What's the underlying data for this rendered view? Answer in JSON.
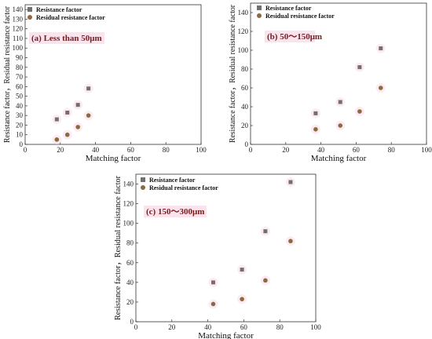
{
  "chart_data": [
    {
      "id": "a",
      "type": "scatter",
      "panel_label": "(a) Less than 50μm",
      "xlabel": "Matching factor",
      "ylabel": "Resistance factor，Residual resistance factor",
      "xlim": [
        0,
        100
      ],
      "ylim": [
        0,
        145
      ],
      "xticks": [
        0,
        20,
        40,
        60,
        80,
        100
      ],
      "yticks": [
        0,
        10,
        20,
        30,
        40,
        50,
        60,
        70,
        80,
        90,
        100,
        110,
        120,
        130,
        140
      ],
      "legend_position": "top-left",
      "series": [
        {
          "name": "Resistance factor",
          "marker": "square",
          "color": "#707070",
          "x": [
            18,
            24,
            30,
            36
          ],
          "y": [
            26,
            33,
            41,
            58
          ]
        },
        {
          "name": "Residual resistance factor",
          "marker": "circle",
          "color": "#8b6a3e",
          "x": [
            18,
            24,
            30,
            36
          ],
          "y": [
            5,
            10,
            18,
            30
          ]
        }
      ]
    },
    {
      "id": "b",
      "type": "scatter",
      "panel_label": "(b) 50～150μm",
      "xlabel": "Matching factor",
      "ylabel": "Resistance factor，Residual resistance factor",
      "xlim": [
        0,
        100
      ],
      "ylim": [
        0,
        150
      ],
      "xticks": [
        0,
        20,
        40,
        60,
        80,
        100
      ],
      "yticks": [
        0,
        20,
        40,
        60,
        80,
        100,
        120,
        140
      ],
      "legend_position": "top-left",
      "series": [
        {
          "name": "Resistance factor",
          "marker": "square",
          "color": "#707070",
          "x": [
            37,
            51,
            62,
            74
          ],
          "y": [
            33,
            45,
            82,
            102
          ]
        },
        {
          "name": "Residual resistance factor",
          "marker": "circle",
          "color": "#8b6a3e",
          "x": [
            37,
            51,
            62,
            74
          ],
          "y": [
            16,
            20,
            35,
            60
          ]
        }
      ]
    },
    {
      "id": "c",
      "type": "scatter",
      "panel_label": "(c) 150～300μm",
      "xlabel": "Matching factor",
      "ylabel": "Resistance factor，Residual resistance factor",
      "xlim": [
        0,
        100
      ],
      "ylim": [
        0,
        150
      ],
      "xticks": [
        0,
        20,
        40,
        60,
        80,
        100
      ],
      "yticks": [
        0,
        20,
        40,
        60,
        80,
        100,
        120,
        140
      ],
      "legend_position": "top-left",
      "series": [
        {
          "name": "Resistance factor",
          "marker": "square",
          "color": "#707070",
          "x": [
            43,
            59,
            72,
            86
          ],
          "y": [
            40,
            53,
            92,
            142
          ]
        },
        {
          "name": "Residual resistance factor",
          "marker": "circle",
          "color": "#8b6a3e",
          "x": [
            43,
            59,
            72,
            86
          ],
          "y": [
            18,
            23,
            42,
            82
          ]
        }
      ]
    }
  ]
}
